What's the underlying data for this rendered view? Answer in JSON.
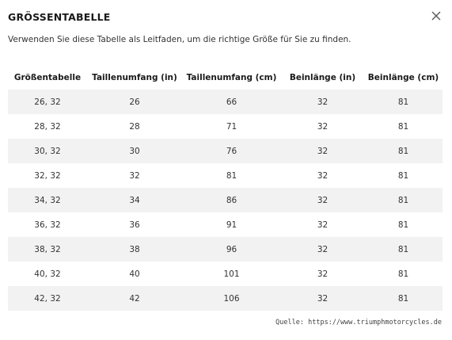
{
  "modal": {
    "title": "GRÖSSENTABELLE",
    "intro": "Verwenden Sie diese Tabelle als Leitfaden, um die richtige Größe für Sie zu finden.",
    "close_icon": "close-icon"
  },
  "table": {
    "headers": [
      "Größentabelle",
      "Taillenumfang (in)",
      "Taillenumfang (cm)",
      "Beinlänge (in)",
      "Beinlänge (cm)"
    ],
    "rows": [
      [
        "26, 32",
        "26",
        "66",
        "32",
        "81"
      ],
      [
        "28, 32",
        "28",
        "71",
        "32",
        "81"
      ],
      [
        "30, 32",
        "30",
        "76",
        "32",
        "81"
      ],
      [
        "32, 32",
        "32",
        "81",
        "32",
        "81"
      ],
      [
        "34, 32",
        "34",
        "86",
        "32",
        "81"
      ],
      [
        "36, 32",
        "36",
        "91",
        "32",
        "81"
      ],
      [
        "38, 32",
        "38",
        "96",
        "32",
        "81"
      ],
      [
        "40, 32",
        "40",
        "101",
        "32",
        "81"
      ],
      [
        "42, 32",
        "42",
        "106",
        "32",
        "81"
      ]
    ]
  },
  "footer": {
    "source": "Quelle: https://www.triumphmotorcycles.de"
  },
  "colors": {
    "stripe": "#f2f2f2",
    "text": "#333333"
  }
}
